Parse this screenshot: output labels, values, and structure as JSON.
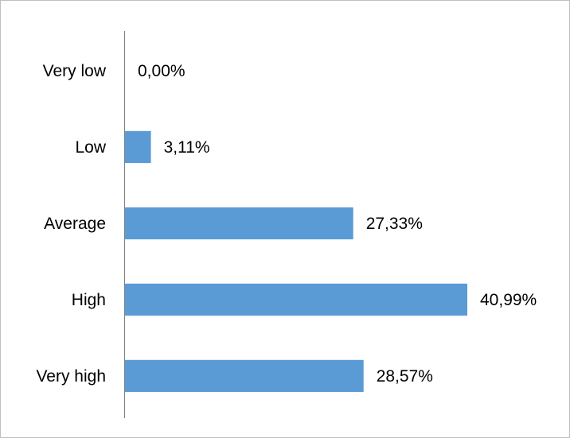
{
  "chart_data": {
    "type": "bar",
    "orientation": "horizontal",
    "categories": [
      "Very low",
      "Low",
      "Average",
      "High",
      "Very high"
    ],
    "values": [
      0.0,
      3.11,
      27.33,
      40.99,
      28.57
    ],
    "data_labels": [
      "0,00%",
      "3,11%",
      "27,33%",
      "40,99%",
      "28,57%"
    ],
    "unit": "%",
    "xlim": [
      0,
      42
    ],
    "grid": false,
    "legend": "none",
    "bar_color": "#5b9bd5",
    "axis_color": "#7f7f7f"
  }
}
